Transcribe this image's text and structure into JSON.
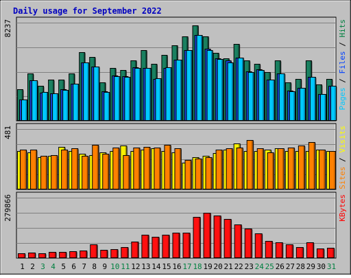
{
  "chart_data": [
    {
      "type": "bar",
      "title": "Daily usage for September 2022",
      "panel": "hits-files-pages",
      "y_label_top": "8237",
      "ylim": [
        0,
        8237
      ],
      "grid": true,
      "side_legend": [
        {
          "text": "Pages",
          "color": "#00c8ff"
        },
        {
          "text": " / ",
          "color": "#000000"
        },
        {
          "text": "Files",
          "color": "#0040ff"
        },
        {
          "text": " / ",
          "color": "#000000"
        },
        {
          "text": "Hits",
          "color": "#008040"
        }
      ],
      "categories": [
        "1",
        "2",
        "3",
        "4",
        "5",
        "6",
        "7",
        "8",
        "9",
        "10",
        "11",
        "12",
        "13",
        "14",
        "15",
        "16",
        "17",
        "18",
        "19",
        "20",
        "21",
        "22",
        "23",
        "24",
        "25",
        "26",
        "27",
        "28",
        "29",
        "30",
        "31"
      ],
      "series": [
        {
          "name": "Hits",
          "color": "#1a8060",
          "values": [
            2600,
            3900,
            2900,
            3400,
            3400,
            3900,
            5700,
            5300,
            3150,
            4400,
            4200,
            5000,
            5900,
            4700,
            5500,
            6300,
            7000,
            7975,
            7000,
            5650,
            5200,
            6400,
            5000,
            4700,
            4050,
            5000,
            3150,
            3450,
            5000,
            3000,
            3450
          ]
        },
        {
          "name": "Files",
          "color": "#1848d8",
          "values": [
            1700,
            3350,
            2300,
            2250,
            2600,
            3050,
            4850,
            4500,
            2400,
            3750,
            3700,
            4450,
            4350,
            3450,
            4400,
            5050,
            5850,
            7150,
            6000,
            5200,
            5000,
            5250,
            4100,
            4250,
            3400,
            3900,
            2450,
            2700,
            3650,
            2200,
            2900
          ]
        },
        {
          "name": "Pages",
          "color": "#00c8ff",
          "values": [
            1700,
            3350,
            2350,
            2250,
            2550,
            3050,
            4850,
            4500,
            2350,
            3700,
            3650,
            4400,
            4350,
            3500,
            4450,
            5050,
            5850,
            7150,
            5900,
            5150,
            4850,
            5250,
            4050,
            4200,
            3400,
            3900,
            2400,
            2700,
            3650,
            2200,
            2900
          ]
        }
      ]
    },
    {
      "type": "bar",
      "panel": "sites-visits",
      "y_label_top": "481",
      "ylim": [
        0,
        481
      ],
      "grid": true,
      "side_legend": [
        {
          "text": "Sites",
          "color": "#ff8000"
        },
        {
          "text": " / ",
          "color": "#000000"
        },
        {
          "text": "Visits",
          "color": "#ffff00"
        }
      ],
      "categories": [
        "1",
        "2",
        "3",
        "4",
        "5",
        "6",
        "7",
        "8",
        "9",
        "10",
        "11",
        "12",
        "13",
        "14",
        "15",
        "16",
        "17",
        "18",
        "19",
        "20",
        "21",
        "22",
        "23",
        "24",
        "25",
        "26",
        "27",
        "28",
        "29",
        "30",
        "31"
      ],
      "series": [
        {
          "name": "Visits",
          "color": "#f8f000",
          "values": [
            300,
            290,
            250,
            260,
            335,
            300,
            280,
            270,
            290,
            300,
            345,
            300,
            310,
            325,
            300,
            290,
            210,
            250,
            260,
            285,
            310,
            360,
            300,
            300,
            310,
            320,
            300,
            300,
            300,
            310,
            300
          ]
        },
        {
          "name": "Sites",
          "color": "#ff8000",
          "values": [
            310,
            310,
            260,
            270,
            310,
            320,
            260,
            350,
            280,
            330,
            270,
            330,
            335,
            330,
            350,
            320,
            230,
            240,
            250,
            310,
            320,
            330,
            390,
            320,
            290,
            320,
            330,
            345,
            370,
            310,
            300
          ]
        }
      ]
    },
    {
      "type": "bar",
      "panel": "kbytes",
      "y_label_top": "279866",
      "ylim": [
        0,
        279866
      ],
      "grid": true,
      "side_legend": [
        {
          "text": "KBytes",
          "color": "#ff0000"
        }
      ],
      "categories": [
        "1",
        "2",
        "3",
        "4",
        "5",
        "6",
        "7",
        "8",
        "9",
        "10",
        "11",
        "12",
        "13",
        "14",
        "15",
        "16",
        "17",
        "18",
        "19",
        "20",
        "21",
        "22",
        "23",
        "24",
        "25",
        "26",
        "27",
        "28",
        "29",
        "30",
        "31"
      ],
      "series": [
        {
          "name": "KBytes",
          "color": "#ff1010",
          "values": [
            19000,
            21500,
            20000,
            27000,
            25000,
            30000,
            32000,
            60000,
            34000,
            37000,
            47000,
            72000,
            105000,
            95000,
            106000,
            116000,
            115000,
            189000,
            207000,
            194000,
            177000,
            152000,
            132000,
            112000,
            76000,
            69000,
            59000,
            49000,
            70000,
            40000,
            43000
          ]
        }
      ]
    }
  ],
  "x_axis": {
    "labels": [
      "1",
      "2",
      "3",
      "4",
      "5",
      "6",
      "7",
      "8",
      "9",
      "10",
      "11",
      "12",
      "13",
      "14",
      "15",
      "16",
      "17",
      "18",
      "19",
      "20",
      "21",
      "22",
      "23",
      "24",
      "25",
      "26",
      "27",
      "28",
      "29",
      "30",
      "31"
    ],
    "weekend_days": [
      "3",
      "4",
      "10",
      "11",
      "17",
      "18",
      "24",
      "25",
      "31"
    ],
    "weekday_color": "#000000",
    "weekend_color": "#008040"
  }
}
